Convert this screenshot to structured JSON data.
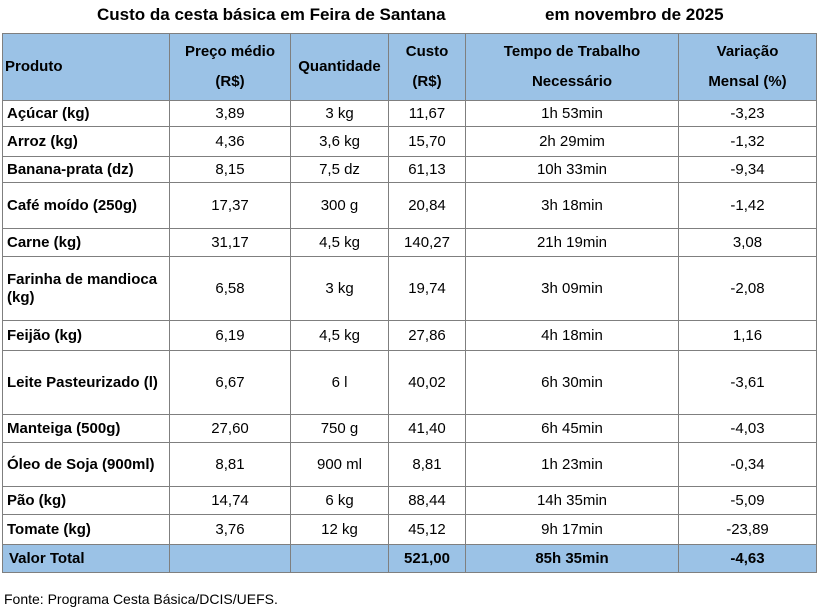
{
  "title": {
    "main": "Custo da cesta básica em Feira de Santana",
    "period": "em novembro de 2025"
  },
  "headers": {
    "produto": "Produto",
    "preco_l1": "Preço médio",
    "preco_l2": "(R$)",
    "quantidade": "Quantidade",
    "custo_l1": "Custo",
    "custo_l2": "(R$)",
    "tempo_l1": "Tempo de Trabalho",
    "tempo_l2": "Necessário",
    "variacao_l1": "Variação",
    "variacao_l2": "Mensal (%)"
  },
  "rows": [
    {
      "produto": "Açúcar (kg)",
      "preco": "3,89",
      "quantidade": "3 kg",
      "custo": "11,67",
      "tempo": "1h 53min",
      "variacao": "-3,23"
    },
    {
      "produto": "Arroz (kg)",
      "preco": "4,36",
      "quantidade": "3,6 kg",
      "custo": "15,70",
      "tempo": "2h 29mim",
      "variacao": "-1,32"
    },
    {
      "produto": "Banana-prata (dz)",
      "preco": "8,15",
      "quantidade": "7,5 dz",
      "custo": "61,13",
      "tempo": "10h 33min",
      "variacao": "-9,34"
    },
    {
      "produto": "Café moído (250g)",
      "preco": "17,37",
      "quantidade": "300 g",
      "custo": "20,84",
      "tempo": "3h 18min",
      "variacao": "-1,42"
    },
    {
      "produto": "Carne (kg)",
      "preco": "31,17",
      "quantidade": "4,5 kg",
      "custo": "140,27",
      "tempo": "21h 19min",
      "variacao": "3,08"
    },
    {
      "produto": "Farinha de mandioca (kg)",
      "preco": "6,58",
      "quantidade": "3 kg",
      "custo": "19,74",
      "tempo": "3h 09min",
      "variacao": "-2,08"
    },
    {
      "produto": "Feijão (kg)",
      "preco": "6,19",
      "quantidade": "4,5 kg",
      "custo": "27,86",
      "tempo": "4h 18min",
      "variacao": "1,16"
    },
    {
      "produto": "Leite Pasteurizado (l)",
      "preco": "6,67",
      "quantidade": "6 l",
      "custo": "40,02",
      "tempo": "6h 30min",
      "variacao": "-3,61"
    },
    {
      "produto": "Manteiga (500g)",
      "preco": "27,60",
      "quantidade": "750 g",
      "custo": "41,40",
      "tempo": "6h 45min",
      "variacao": "-4,03"
    },
    {
      "produto": "Óleo de Soja (900ml)",
      "preco": "8,81",
      "quantidade": "900 ml",
      "custo": "8,81",
      "tempo": "1h 23min",
      "variacao": "-0,34"
    },
    {
      "produto": "Pão (kg)",
      "preco": "14,74",
      "quantidade": "6 kg",
      "custo": "88,44",
      "tempo": "14h 35min",
      "variacao": "-5,09"
    },
    {
      "produto": "Tomate (kg)",
      "preco": "3,76",
      "quantidade": "12 kg",
      "custo": "45,12",
      "tempo": "9h 17min",
      "variacao": "-23,89"
    }
  ],
  "total": {
    "label": "Valor Total",
    "custo": "521,00",
    "tempo": "85h 35min",
    "variacao": "-4,63"
  },
  "source": "Fonte: Programa Cesta Básica/DCIS/UEFS.",
  "colors": {
    "header_bg": "#9bc2e6",
    "border": "#7f7f7f"
  }
}
